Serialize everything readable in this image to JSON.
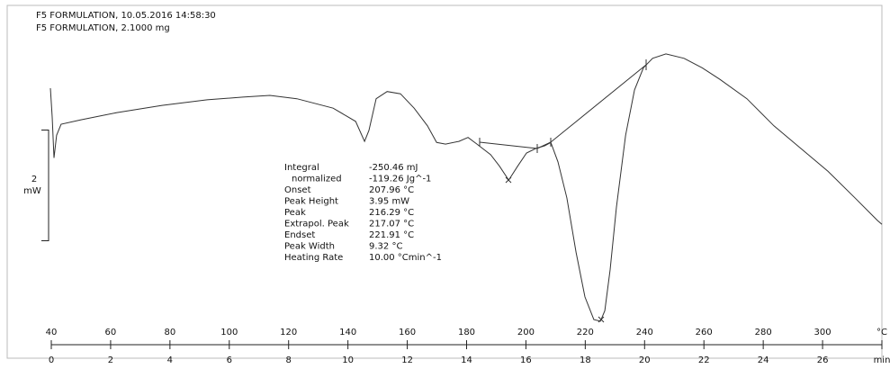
{
  "chart_data": {
    "type": "line",
    "header": [
      "F5 FORMULATION, 10.05.2016 14:58:30",
      "F5 FORMULATION, 2.1000 mg"
    ],
    "x": [
      39.7,
      40.3,
      40.9,
      41.8,
      43.3,
      50.0,
      62.1,
      77.3,
      92.5,
      104.6,
      113.7,
      122.8,
      135.0,
      142.6,
      145.6,
      147.1,
      149.5,
      153.2,
      157.7,
      162.3,
      166.8,
      169.9,
      172.9,
      177.4,
      180.5,
      183.5,
      188.1,
      191.1,
      194.2,
      197.2,
      200.2,
      203.3,
      206.3,
      208.4,
      210.8,
      213.8,
      216.9,
      219.9,
      222.9,
      225.1,
      226.6,
      228.4,
      230.5,
      233.6,
      236.6,
      239.6,
      242.7,
      247.2,
      253.3,
      259.4,
      265.4,
      274.5,
      283.6,
      292.7,
      301.8,
      310.9,
      318.5,
      320.0
    ],
    "values": [
      4.26,
      3.74,
      3.0,
      3.41,
      3.61,
      3.69,
      3.82,
      3.95,
      4.05,
      4.1,
      4.13,
      4.07,
      3.9,
      3.66,
      3.3,
      3.5,
      4.07,
      4.2,
      4.16,
      3.9,
      3.58,
      3.28,
      3.25,
      3.3,
      3.37,
      3.25,
      3.06,
      2.85,
      2.6,
      2.85,
      3.09,
      3.17,
      3.22,
      3.28,
      2.93,
      2.28,
      1.3,
      0.49,
      0.08,
      0.05,
      0.24,
      0.98,
      2.11,
      3.41,
      4.23,
      4.63,
      4.8,
      4.88,
      4.8,
      4.63,
      4.42,
      4.07,
      3.58,
      3.17,
      2.76,
      2.28,
      1.87,
      1.8
    ],
    "color": "#333333",
    "xlim": [
      40,
      320
    ],
    "xticks": [
      40,
      60,
      80,
      100,
      120,
      140,
      160,
      180,
      200,
      220,
      240,
      260,
      280,
      300,
      {
        "value": 320,
        "label": "°C"
      }
    ],
    "x2lim": [
      0,
      28
    ],
    "x2ticks": [
      0,
      2,
      4,
      6,
      8,
      10,
      12,
      14,
      16,
      18,
      20,
      22,
      24,
      26,
      {
        "value": 28,
        "label": "min"
      }
    ],
    "ylim": [
      0,
      5
    ],
    "y_scale": {
      "value": 2,
      "unit": "mW"
    },
    "results": [
      [
        "Integral",
        "-250.46 mJ"
      ],
      [
        "normalized",
        "-119.26 Jg^-1"
      ],
      [
        "Onset",
        "207.96 °C"
      ],
      [
        "Peak Height",
        "3.95 mW"
      ],
      [
        "Peak",
        "216.29 °C"
      ],
      [
        "Extrapol. Peak",
        "217.07 °C"
      ],
      [
        "Endset",
        "221.91 °C"
      ],
      [
        "Peak Width",
        "9.32 °C"
      ],
      [
        "Heating Rate",
        "10.00 °Cmin^-1"
      ]
    ]
  }
}
